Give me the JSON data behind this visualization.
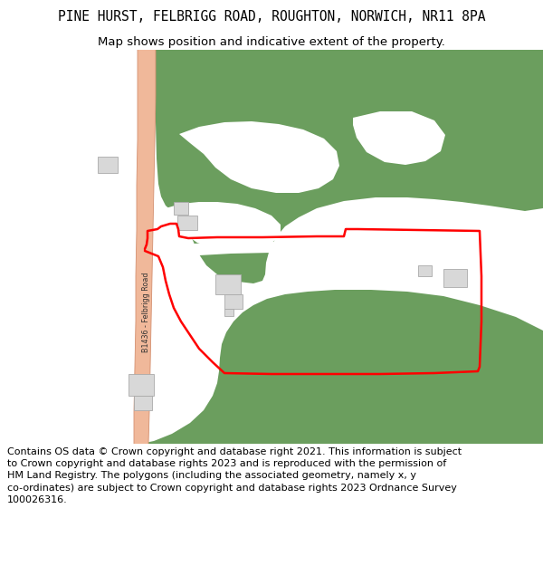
{
  "title": "PINE HURST, FELBRIGG ROAD, ROUGHTON, NORWICH, NR11 8PA",
  "subtitle": "Map shows position and indicative extent of the property.",
  "footer": "Contains OS data © Crown copyright and database right 2021. This information is subject to Crown copyright and database rights 2023 and is reproduced with the permission of HM Land Registry. The polygons (including the associated geometry, namely x, y co-ordinates) are subject to Crown copyright and database rights 2023 Ordnance Survey 100026316.",
  "bg_color": "#ffffff",
  "green_color": "#6b9e5e",
  "road_color": "#f0b89a",
  "road_edge_color": "#d49070",
  "plot_outline_color": "#ff0000",
  "building_color": "#d8d8d8",
  "building_outline": "#aaaaaa",
  "road_label": "B1436 - Felbrigg Road",
  "title_fontsize": 10.5,
  "subtitle_fontsize": 9.5,
  "footer_fontsize": 8.0
}
